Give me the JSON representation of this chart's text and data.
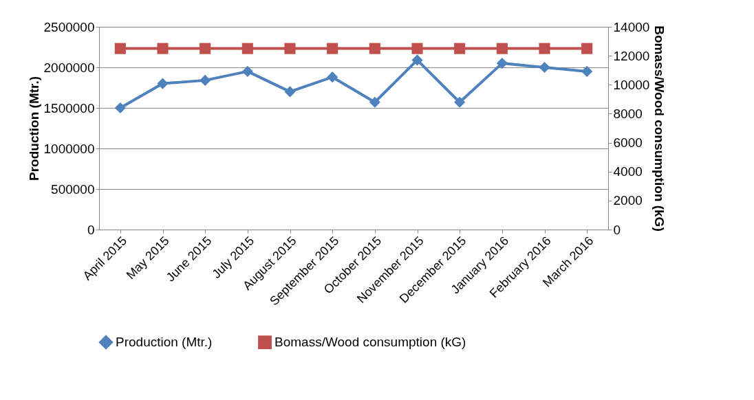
{
  "chart_data": {
    "type": "line",
    "ylabel": "Production (Mtr.)",
    "y2label": "Bomass/Wood consumption (kG)",
    "categories": [
      "April 2015",
      "May 2015",
      "June 2015",
      "July 2015",
      "August 2015",
      "September 2015",
      "October 2015",
      "November 2015",
      "December 2015",
      "January 2016",
      "February 2016",
      "March 2016"
    ],
    "series": [
      {
        "name": "Production (Mtr.)",
        "color": "#4f81bd",
        "marker": "diamond",
        "values": [
          1500000,
          1800000,
          1840000,
          1950000,
          1700000,
          1880000,
          1570000,
          2090000,
          1570000,
          2050000,
          2000000,
          1950000
        ]
      },
      {
        "name": "Bomass/Wood consumption (kG)",
        "color": "#c0504d",
        "marker": "square",
        "axis": "y2",
        "values": [
          12500,
          12500,
          12500,
          12500,
          12500,
          12500,
          12500,
          12500,
          12500,
          12500,
          12500,
          12500
        ]
      }
    ],
    "ylim": [
      0,
      2500000
    ],
    "yticks": [
      0,
      500000,
      1000000,
      1500000,
      2000000,
      2500000
    ],
    "y2lim": [
      0,
      14000
    ],
    "y2ticks": [
      0,
      2000,
      4000,
      6000,
      8000,
      10000,
      12000,
      14000
    ],
    "grid": "y",
    "legend": "bottom"
  }
}
